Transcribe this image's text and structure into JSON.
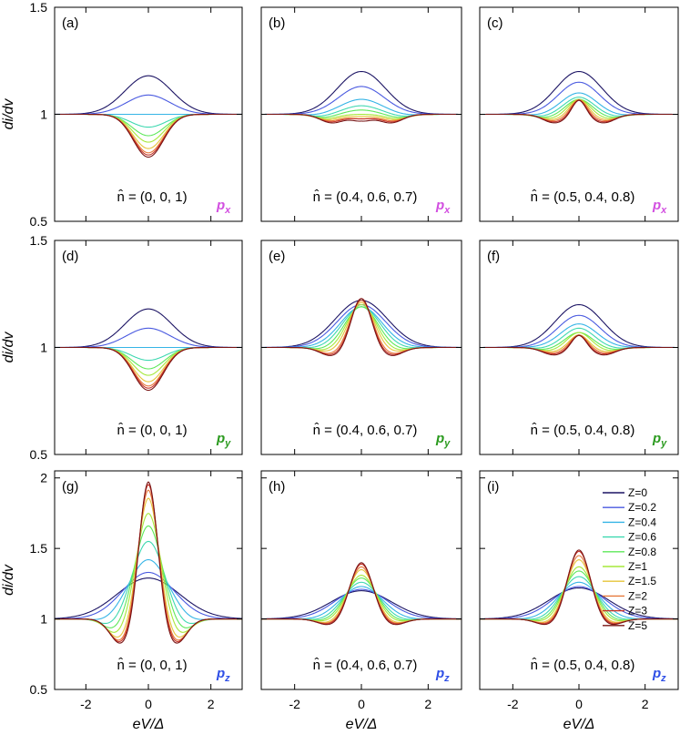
{
  "chart_data": {
    "type": "line",
    "title": "",
    "xlabel": "eV/Δ",
    "ylabel": "di/dv",
    "xlim": [
      -3,
      3
    ],
    "x_ticks": [
      -2,
      0,
      2
    ],
    "x_tick_labels": [
      "-2",
      "0",
      "2"
    ],
    "rows": [
      {
        "orbital": "px",
        "orbital_label_main": "p",
        "orbital_label_sub": "x",
        "orbital_color": "#d24fe0",
        "ylim": [
          0.5,
          1.5
        ],
        "y_ticks": [
          0.5,
          1,
          1.5
        ],
        "y_tick_labels": [
          "0.5",
          "1",
          "1.5"
        ],
        "ylabel": "di/dv"
      },
      {
        "orbital": "py",
        "orbital_label_main": "p",
        "orbital_label_sub": "y",
        "orbital_color": "#2a9a1e",
        "ylim": [
          0.5,
          1.5
        ],
        "y_ticks": [
          0.5,
          1,
          1.5
        ],
        "y_tick_labels": [
          "0.5",
          "1",
          "1.5"
        ],
        "ylabel": "di/dv"
      },
      {
        "orbital": "pz",
        "orbital_label_main": "p",
        "orbital_label_sub": "z",
        "orbital_color": "#2f4fe6",
        "ylim": [
          0.5,
          2.05
        ],
        "y_ticks": [
          0.5,
          1,
          1.5,
          2
        ],
        "y_tick_labels": [
          "0.5",
          "1",
          "1.5",
          "2"
        ],
        "ylabel": "di/dv"
      }
    ],
    "legend": {
      "location": "top-right of panel (i)",
      "entries": [
        "Z=0",
        "Z=0.2",
        "Z=0.4",
        "Z=0.6",
        "Z=0.8",
        "Z=1",
        "Z=1.5",
        "Z=2",
        "Z=3",
        "Z=5"
      ],
      "colors": [
        "#1c1464",
        "#4a5ae0",
        "#35b4e6",
        "#3ed8b0",
        "#5ee85a",
        "#a6e83a",
        "#e6c43a",
        "#e6783a",
        "#c83226",
        "#781414"
      ]
    },
    "panels": [
      {
        "id": "a",
        "label": "(a)",
        "n_hat": "n̂ = (0, 0, 1)",
        "row": 0,
        "col": 0,
        "series_params": {
          "peak_heights": [
            1.18,
            1.09,
            1.0,
            0.94,
            0.9,
            0.87,
            0.84,
            0.82,
            0.81,
            0.8
          ],
          "peak_widths": [
            0.75,
            0.7,
            0.6,
            0.55,
            0.52,
            0.5,
            0.49,
            0.48,
            0.48,
            0.48
          ],
          "side_dips": [
            0,
            0,
            0,
            0,
            0,
            0,
            0,
            0,
            0,
            0
          ]
        }
      },
      {
        "id": "b",
        "label": "(b)",
        "n_hat": "n̂ = (0.4, 0.6, 0.7)",
        "row": 0,
        "col": 1,
        "series_params": {
          "peak_heights": [
            1.2,
            1.13,
            1.07,
            1.04,
            1.02,
            1.0,
            0.99,
            0.98,
            0.98,
            0.97
          ],
          "peak_widths": [
            0.72,
            0.68,
            0.6,
            0.52,
            0.46,
            0.42,
            0.38,
            0.34,
            0.32,
            0.3
          ],
          "side_dips": [
            0,
            0,
            0.005,
            0.01,
            0.015,
            0.02,
            0.025,
            0.03,
            0.035,
            0.04
          ]
        }
      },
      {
        "id": "c",
        "label": "(c)",
        "n_hat": "n̂ = (0.5, 0.4, 0.8)",
        "row": 0,
        "col": 2,
        "series_params": {
          "peak_heights": [
            1.2,
            1.15,
            1.1,
            1.08,
            1.07,
            1.07,
            1.07,
            1.07,
            1.07,
            1.07
          ],
          "peak_widths": [
            0.7,
            0.62,
            0.52,
            0.44,
            0.38,
            0.32,
            0.27,
            0.24,
            0.22,
            0.21
          ],
          "side_dips": [
            0,
            0,
            0.005,
            0.01,
            0.015,
            0.02,
            0.025,
            0.03,
            0.035,
            0.04
          ]
        }
      },
      {
        "id": "d",
        "label": "(d)",
        "n_hat": "n̂ = (0, 0, 1)",
        "row": 1,
        "col": 0,
        "series_params": {
          "peak_heights": [
            1.18,
            1.09,
            1.0,
            0.94,
            0.9,
            0.87,
            0.84,
            0.82,
            0.81,
            0.8
          ],
          "peak_widths": [
            0.75,
            0.7,
            0.6,
            0.55,
            0.52,
            0.5,
            0.49,
            0.48,
            0.48,
            0.48
          ],
          "side_dips": [
            0,
            0,
            0,
            0,
            0,
            0,
            0,
            0,
            0,
            0
          ]
        }
      },
      {
        "id": "e",
        "label": "(e)",
        "n_hat": "n̂ = (0.4, 0.6, 0.7)",
        "row": 1,
        "col": 1,
        "series_params": {
          "peak_heights": [
            1.22,
            1.2,
            1.19,
            1.19,
            1.19,
            1.2,
            1.21,
            1.22,
            1.23,
            1.23
          ],
          "peak_widths": [
            0.78,
            0.72,
            0.62,
            0.55,
            0.48,
            0.42,
            0.37,
            0.33,
            0.31,
            0.3
          ],
          "side_dips": [
            0,
            0,
            0,
            0.005,
            0.01,
            0.015,
            0.02,
            0.03,
            0.035,
            0.04
          ]
        }
      },
      {
        "id": "f",
        "label": "(f)",
        "n_hat": "n̂ = (0.5, 0.4, 0.8)",
        "row": 1,
        "col": 2,
        "series_params": {
          "peak_heights": [
            1.2,
            1.15,
            1.11,
            1.09,
            1.07,
            1.07,
            1.06,
            1.06,
            1.06,
            1.06
          ],
          "peak_widths": [
            0.72,
            0.64,
            0.55,
            0.46,
            0.4,
            0.34,
            0.28,
            0.25,
            0.23,
            0.22
          ],
          "side_dips": [
            0,
            0,
            0,
            0.005,
            0.01,
            0.015,
            0.02,
            0.025,
            0.03,
            0.035
          ]
        }
      },
      {
        "id": "g",
        "label": "(g)",
        "n_hat": "n̂ = (0, 0, 1)",
        "row": 2,
        "col": 0,
        "series_params": {
          "peak_heights": [
            1.29,
            1.33,
            1.42,
            1.55,
            1.66,
            1.75,
            1.86,
            1.92,
            1.96,
            1.98
          ],
          "peak_widths": [
            1.0,
            0.82,
            0.62,
            0.5,
            0.43,
            0.38,
            0.33,
            0.31,
            0.3,
            0.29
          ],
          "side_dips": [
            0,
            0,
            0.02,
            0.05,
            0.08,
            0.11,
            0.14,
            0.16,
            0.17,
            0.18
          ]
        }
      },
      {
        "id": "h",
        "label": "(h)",
        "n_hat": "n̂ = (0.4, 0.6, 0.7)",
        "row": 2,
        "col": 1,
        "series_params": {
          "peak_heights": [
            1.2,
            1.21,
            1.23,
            1.26,
            1.29,
            1.31,
            1.35,
            1.37,
            1.39,
            1.4
          ],
          "peak_widths": [
            0.9,
            0.78,
            0.62,
            0.52,
            0.46,
            0.42,
            0.38,
            0.36,
            0.35,
            0.34
          ],
          "side_dips": [
            0,
            0,
            0.005,
            0.01,
            0.015,
            0.02,
            0.03,
            0.035,
            0.04,
            0.045
          ]
        }
      },
      {
        "id": "i",
        "label": "(i)",
        "n_hat": "n̂ = (0.5, 0.4, 0.8)",
        "row": 2,
        "col": 2,
        "series_params": {
          "peak_heights": [
            1.22,
            1.23,
            1.26,
            1.3,
            1.34,
            1.37,
            1.42,
            1.45,
            1.48,
            1.49
          ],
          "peak_widths": [
            0.9,
            0.78,
            0.62,
            0.52,
            0.46,
            0.42,
            0.38,
            0.36,
            0.35,
            0.34
          ],
          "side_dips": [
            0,
            0,
            0.005,
            0.01,
            0.015,
            0.02,
            0.03,
            0.035,
            0.04,
            0.045
          ]
        }
      }
    ]
  }
}
